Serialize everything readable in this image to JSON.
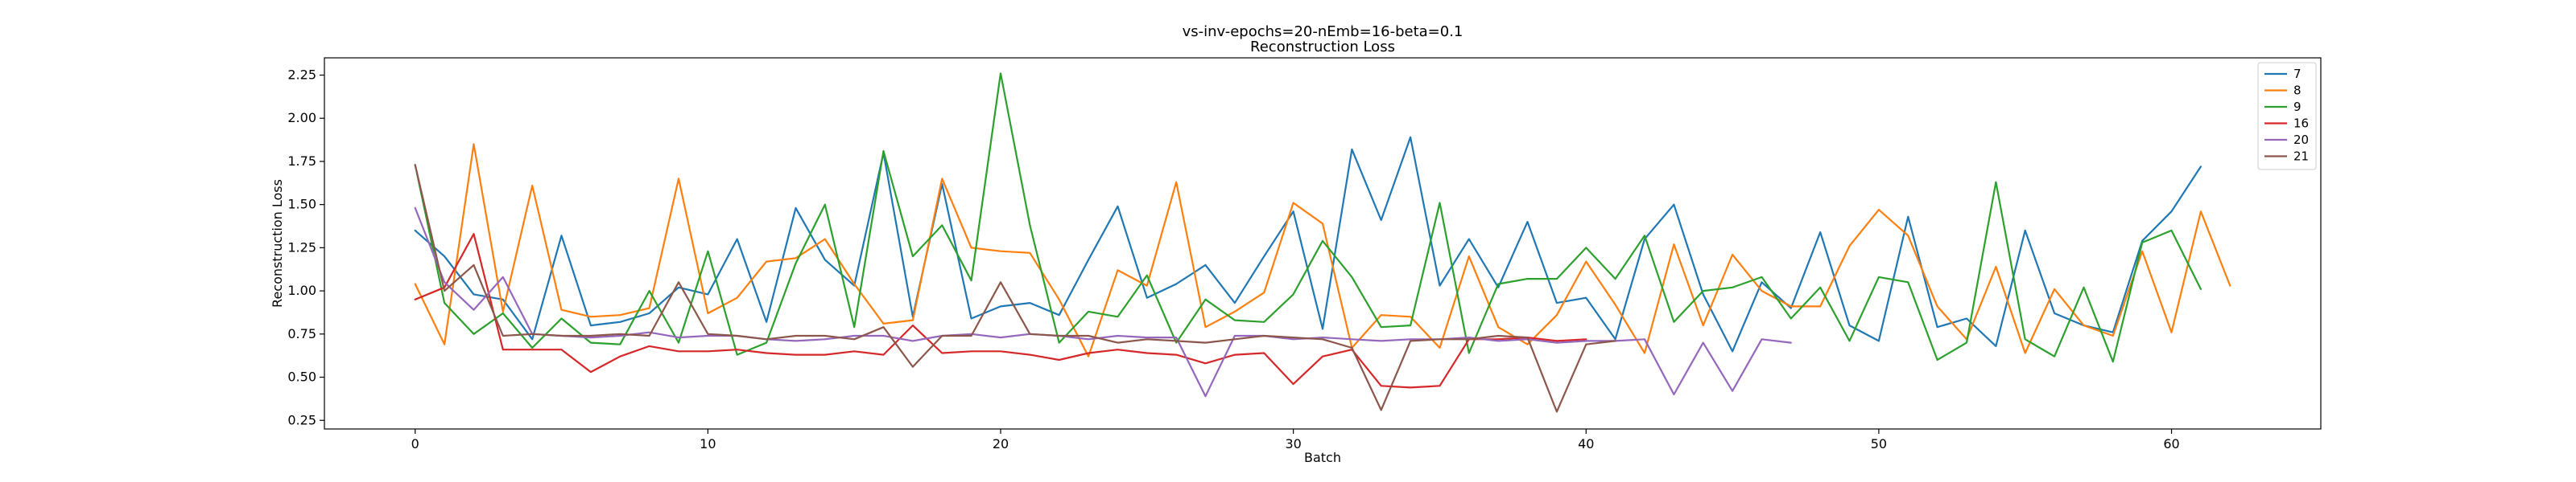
{
  "chart_data": {
    "type": "line",
    "title": "vs-inv-epochs=20-nEmb=16-beta=0.1",
    "subtitle": "Reconstruction Loss",
    "xlabel": "Batch",
    "ylabel": "Reconstruction Loss",
    "xlim": [
      -3.1,
      65.1
    ],
    "ylim": [
      0.2,
      2.35
    ],
    "xticks": [
      0,
      10,
      20,
      30,
      40,
      50,
      60
    ],
    "yticks": [
      0.25,
      0.5,
      0.75,
      1.0,
      1.25,
      1.5,
      1.75,
      2.0,
      2.25
    ],
    "grid": false,
    "legend_position": "top-right",
    "series": [
      {
        "name": "7",
        "color": "#1f77b4",
        "values": [
          1.35,
          1.2,
          0.98,
          0.95,
          0.72,
          1.32,
          0.8,
          0.82,
          0.87,
          1.02,
          0.98,
          1.3,
          0.82,
          1.48,
          1.18,
          1.03,
          1.8,
          0.85,
          1.62,
          0.84,
          0.91,
          0.93,
          0.86,
          1.18,
          1.49,
          0.96,
          1.04,
          1.15,
          0.93,
          1.2,
          1.46,
          0.78,
          1.82,
          1.41,
          1.89,
          1.03,
          1.3,
          1.02,
          1.4,
          0.93,
          0.96,
          0.72,
          1.3,
          1.5,
          0.98,
          0.65,
          1.05,
          0.9,
          1.34,
          0.8,
          0.71,
          1.43,
          0.79,
          0.84,
          0.68,
          1.35,
          0.87,
          0.8,
          0.76,
          1.29,
          1.46,
          1.72
        ]
      },
      {
        "name": "8",
        "color": "#ff7f0e",
        "values": [
          1.04,
          0.69,
          1.85,
          0.88,
          1.61,
          0.89,
          0.85,
          0.86,
          0.9,
          1.65,
          0.87,
          0.96,
          1.17,
          1.19,
          1.3,
          1.04,
          0.81,
          0.83,
          1.65,
          1.25,
          1.23,
          1.22,
          0.95,
          0.62,
          1.12,
          1.03,
          1.63,
          0.79,
          0.88,
          0.99,
          1.51,
          1.39,
          0.67,
          0.86,
          0.85,
          0.67,
          1.2,
          0.79,
          0.69,
          0.86,
          1.17,
          0.92,
          0.64,
          1.27,
          0.8,
          1.21,
          1.0,
          0.91,
          0.91,
          1.26,
          1.47,
          1.32,
          0.91,
          0.72,
          1.14,
          0.64,
          1.01,
          0.8,
          0.74,
          1.23,
          0.76,
          1.46,
          1.03
        ]
      },
      {
        "name": "9",
        "color": "#2ca02c",
        "values": [
          1.73,
          0.93,
          0.75,
          0.87,
          0.67,
          0.84,
          0.7,
          0.69,
          1.0,
          0.7,
          1.23,
          0.63,
          0.7,
          1.16,
          1.5,
          0.79,
          1.81,
          1.2,
          1.38,
          1.06,
          2.26,
          1.38,
          0.7,
          0.88,
          0.85,
          1.09,
          0.7,
          0.95,
          0.83,
          0.82,
          0.98,
          1.29,
          1.08,
          0.79,
          0.8,
          1.51,
          0.64,
          1.04,
          1.07,
          1.07,
          1.25,
          1.07,
          1.32,
          0.82,
          1.0,
          1.02,
          1.08,
          0.84,
          1.02,
          0.71,
          1.08,
          1.05,
          0.6,
          0.7,
          1.63,
          0.72,
          0.62,
          1.02,
          0.59,
          1.28,
          1.35,
          1.01
        ]
      },
      {
        "name": "16",
        "color": "#d62728",
        "values": [
          0.95,
          1.02,
          1.33,
          0.66,
          0.66,
          0.66,
          0.53,
          0.62,
          0.68,
          0.65,
          0.65,
          0.66,
          0.64,
          0.63,
          0.63,
          0.65,
          0.63,
          0.8,
          0.64,
          0.65,
          0.65,
          0.63,
          0.6,
          0.64,
          0.66,
          0.64,
          0.63,
          0.58,
          0.63,
          0.64,
          0.46,
          0.62,
          0.66,
          0.45,
          0.44,
          0.45,
          0.72,
          0.72,
          0.73,
          0.71,
          0.72
        ]
      },
      {
        "name": "20",
        "color": "#9467bd",
        "values": [
          1.48,
          1.05,
          0.89,
          1.08,
          0.75,
          0.74,
          0.73,
          0.74,
          0.76,
          0.73,
          0.74,
          0.74,
          0.72,
          0.71,
          0.72,
          0.74,
          0.74,
          0.71,
          0.74,
          0.75,
          0.73,
          0.75,
          0.74,
          0.72,
          0.74,
          0.73,
          0.73,
          0.39,
          0.74,
          0.74,
          0.72,
          0.73,
          0.72,
          0.71,
          0.72,
          0.72,
          0.73,
          0.71,
          0.72,
          0.7,
          0.71,
          0.71,
          0.72,
          0.4,
          0.7,
          0.42,
          0.72,
          0.7
        ]
      },
      {
        "name": "21",
        "color": "#8c564b",
        "values": [
          1.73,
          1.0,
          1.15,
          0.74,
          0.75,
          0.74,
          0.74,
          0.75,
          0.74,
          1.05,
          0.75,
          0.74,
          0.72,
          0.74,
          0.74,
          0.72,
          0.79,
          0.56,
          0.74,
          0.74,
          1.05,
          0.75,
          0.74,
          0.74,
          0.7,
          0.72,
          0.71,
          0.7,
          0.72,
          0.74,
          0.73,
          0.72,
          0.67,
          0.31,
          0.71,
          0.72,
          0.72,
          0.74,
          0.73,
          0.3,
          0.69,
          0.71
        ]
      }
    ]
  }
}
